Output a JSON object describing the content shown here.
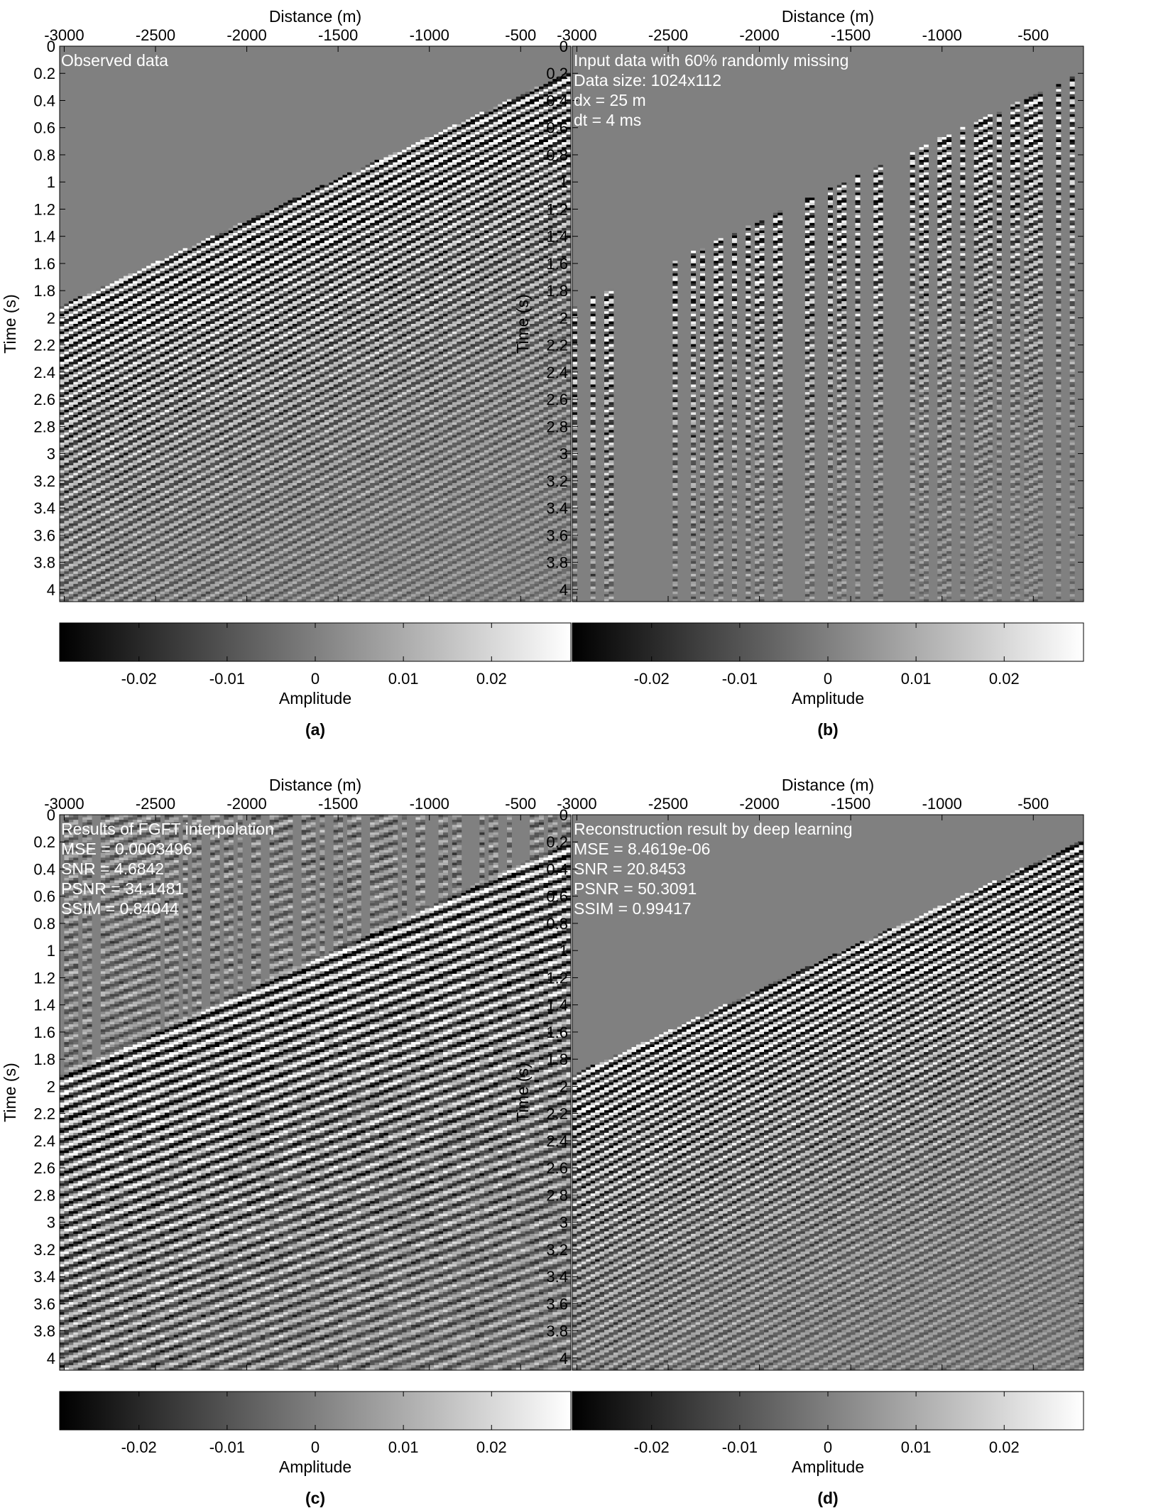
{
  "figure": {
    "panels": [
      {
        "letter": "(a)",
        "annotations": [
          "Observed data"
        ],
        "mode": "full"
      },
      {
        "letter": "(b)",
        "annotations": [
          "Input data with 60% randomly missing",
          "Data size: 1024x112",
          "dx = 25 m",
          "dt = 4 ms"
        ],
        "mode": "missing"
      },
      {
        "letter": "(c)",
        "annotations": [
          "Results of FGFT interpolation",
          "MSE  = 0.0003496",
          "SNR  = 4.6842",
          "PSNR = 34.1481",
          "SSIM = 0.84044"
        ],
        "mode": "fgft"
      },
      {
        "letter": "(d)",
        "annotations": [
          "Reconstruction result by deep learning",
          "MSE  = 8.4619e-06",
          "SNR  = 20.8453",
          "PSNR = 50.3091",
          "SSIM = 0.99417"
        ],
        "mode": "full"
      }
    ]
  },
  "chart_data": [
    {
      "type": "heatmap",
      "xlabel": "Distance (m)",
      "ylabel": "Time (s)",
      "xticks": [
        -3000,
        -2500,
        -2000,
        -1500,
        -1000,
        -500
      ],
      "yticks": [
        0,
        0.2,
        0.4,
        0.6,
        0.8,
        1,
        1.2,
        1.4,
        1.6,
        1.8,
        2,
        2.2,
        2.4,
        2.6,
        2.8,
        3,
        3.2,
        3.4,
        3.6,
        3.8,
        4
      ],
      "xlim": [
        -3025,
        -225
      ],
      "ylim": [
        0,
        4.09
      ],
      "y_reversed": true,
      "x_axis_position": "top",
      "colorbar": {
        "label": "Amplitude",
        "ticks": [
          -0.02,
          -0.01,
          0,
          0.01,
          0.02
        ],
        "range": [
          -0.029,
          0.029
        ],
        "colormap": "gray"
      },
      "first_arrival_time_s": [
        [
          -3025,
          1.93
        ],
        [
          -225,
          0.2
        ]
      ]
    },
    {
      "type": "heatmap",
      "xlabel": "Distance (m)",
      "ylabel": "Time (s)",
      "xticks": [
        -3000,
        -2500,
        -2000,
        -1500,
        -1000,
        -500
      ],
      "yticks": [
        0,
        0.2,
        0.4,
        0.6,
        0.8,
        1,
        1.2,
        1.4,
        1.6,
        1.8,
        2,
        2.2,
        2.4,
        2.6,
        2.8,
        3,
        3.2,
        3.4,
        3.6,
        3.8,
        4
      ],
      "xlim": [
        -3025,
        -225
      ],
      "ylim": [
        0,
        4.09
      ],
      "y_reversed": true,
      "x_axis_position": "top",
      "colorbar": {
        "label": "Amplitude",
        "ticks": [
          -0.02,
          -0.01,
          0,
          0.01,
          0.02
        ],
        "range": [
          -0.029,
          0.029
        ],
        "colormap": "gray"
      },
      "missing_ratio": 0.6
    },
    {
      "type": "heatmap",
      "xlabel": "Distance (m)",
      "ylabel": "Time (s)",
      "xticks": [
        -3000,
        -2500,
        -2000,
        -1500,
        -1000,
        -500
      ],
      "yticks": [
        0,
        0.2,
        0.4,
        0.6,
        0.8,
        1,
        1.2,
        1.4,
        1.6,
        1.8,
        2,
        2.2,
        2.4,
        2.6,
        2.8,
        3,
        3.2,
        3.4,
        3.6,
        3.8,
        4
      ],
      "xlim": [
        -3025,
        -225
      ],
      "ylim": [
        0,
        4.09
      ],
      "y_reversed": true,
      "x_axis_position": "top",
      "colorbar": {
        "label": "Amplitude",
        "ticks": [
          -0.02,
          -0.01,
          0,
          0.01,
          0.02
        ],
        "range": [
          -0.029,
          0.029
        ],
        "colormap": "gray"
      }
    },
    {
      "type": "heatmap",
      "xlabel": "Distance (m)",
      "ylabel": "Time (s)",
      "xticks": [
        -3000,
        -2500,
        -2000,
        -1500,
        -1000,
        -500
      ],
      "yticks": [
        0,
        0.2,
        0.4,
        0.6,
        0.8,
        1,
        1.2,
        1.4,
        1.6,
        1.8,
        2,
        2.2,
        2.4,
        2.6,
        2.8,
        3,
        3.2,
        3.4,
        3.6,
        3.8,
        4
      ],
      "xlim": [
        -3025,
        -225
      ],
      "ylim": [
        0,
        4.09
      ],
      "y_reversed": true,
      "x_axis_position": "top",
      "colorbar": {
        "label": "Amplitude",
        "ticks": [
          -0.02,
          -0.01,
          0,
          0.01,
          0.02
        ],
        "range": [
          -0.029,
          0.029
        ],
        "colormap": "gray"
      },
      "first_arrival_time_s": [
        [
          -3025,
          1.93
        ],
        [
          -225,
          0.2
        ]
      ]
    }
  ]
}
